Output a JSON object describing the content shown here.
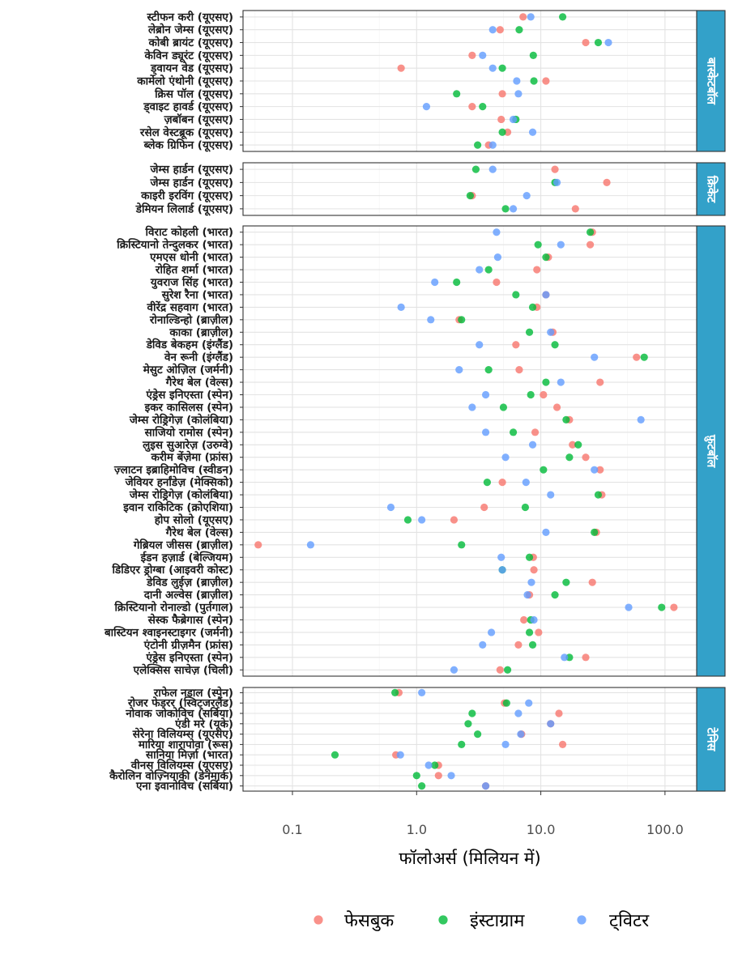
{
  "chart_data": {
    "type": "scatter",
    "title": "",
    "xlabel": "फॉलोअर्स (मिलियन में)",
    "ylabel": "",
    "x_scale": "log10",
    "xlim": [
      0.04,
      180
    ],
    "x_ticks": [
      0.1,
      1,
      10,
      100
    ],
    "x_tick_labels": [
      "0.1",
      "1.0",
      "10.0",
      "100.0"
    ],
    "grid": true,
    "legend_position": "bottom",
    "colors": {
      "फेसबुक": "#F8766D",
      "इंस्टाग्राम": "#00BA38",
      "ट्विटर": "#619CFF"
    },
    "legend": [
      {
        "label": "फेसबुक",
        "color": "#F8766D"
      },
      {
        "label": "इंस्टाग्राम",
        "color": "#00BA38"
      },
      {
        "label": "ट्विटर",
        "color": "#619CFF"
      }
    ],
    "series_order": [
      "फेसबुक",
      "इंस्टाग्राम",
      "ट्विटर"
    ],
    "panels": [
      {
        "sport": "बास्केटबॉल",
        "athletes": [
          {
            "name": "स्टीफन करी (यूएसए)",
            "values": [
              7.2,
              15,
              8.3
            ]
          },
          {
            "name": "लेब्रोन जेम्स (यूएसए)",
            "values": [
              4.7,
              6.7,
              4.1
            ]
          },
          {
            "name": "कोबी ब्रायंट (यूएसए)",
            "values": [
              23,
              29,
              35
            ]
          },
          {
            "name": "केविन ड्यूरंट (यूएसए)",
            "values": [
              2.8,
              8.7,
              3.4
            ]
          },
          {
            "name": "ड्वायन वेड (यूएसए)",
            "values": [
              0.75,
              4.9,
              4.1
            ]
          },
          {
            "name": "कार्मेलो एंथोनी (यूएसए)",
            "values": [
              11,
              8.8,
              6.4
            ]
          },
          {
            "name": "क्रिस पॉल (यूएसए)",
            "values": [
              4.9,
              2.1,
              6.6
            ]
          },
          {
            "name": "ड्वाइट हावर्ड (यूएसए)",
            "values": [
              2.8,
              3.4,
              1.2
            ]
          },
          {
            "name": "ज़बॉबन (यूएसए)",
            "values": [
              4.8,
              6.3,
              6.0
            ]
          },
          {
            "name": "रसेल वेस्टब्रूक (यूएसए)",
            "values": [
              5.4,
              4.9,
              8.6
            ]
          },
          {
            "name": "ब्लेक ग्रिफिन (यूएसए)",
            "values": [
              3.8,
              3.1,
              4.1
            ]
          }
        ]
      },
      {
        "sport": "क्रिकेट",
        "athletes": [
          {
            "name": "जेम्स हार्डन (यूएसए)",
            "values": [
              13,
              3.0,
              4.1
            ]
          },
          {
            "name": "जेम्स हार्डन (यूएसए)",
            "values": [
              34,
              13,
              13.5
            ]
          },
          {
            "name": "काइरी इरविंग (यूएसए)",
            "values": [
              2.8,
              2.7,
              7.7
            ]
          },
          {
            "name": "डेमियन लिलार्ड (यूएसए)",
            "values": [
              19,
              5.2,
              6.0
            ]
          }
        ]
      },
      {
        "sport": "फ़ुटबॉल",
        "athletes": [
          {
            "name": "विराट कोहली (भारत)",
            "values": [
              26,
              25,
              4.4
            ]
          },
          {
            "name": "क्रिस्टियानो तेन्दुलकर (भारत)",
            "values": [
              25,
              9.5,
              14.5
            ]
          },
          {
            "name": "एमएस धोनी (भारत)",
            "values": [
              11.5,
              11,
              4.5
            ]
          },
          {
            "name": "रोहित शर्मा (भारत)",
            "values": [
              9.3,
              3.8,
              3.2
            ]
          },
          {
            "name": "युवराज सिंह (भारत)",
            "values": [
              4.4,
              2.1,
              1.4
            ]
          },
          {
            "name": "सुरेश रैना (भारत)",
            "values": [
              11,
              6.3,
              11
            ]
          },
          {
            "name": "वीरेंद्र सहवाग (भारत)",
            "values": [
              9.3,
              8.6,
              0.75
            ]
          },
          {
            "name": "रोनाल्डिन्हो (ब्राज़ील)",
            "values": [
              2.2,
              2.3,
              1.3
            ]
          },
          {
            "name": "काका (ब्राज़ील)",
            "values": [
              12.5,
              8.1,
              12
            ]
          },
          {
            "name": "डेविड बेकहम (इंग्लैंड)",
            "values": [
              6.3,
              13,
              3.2
            ]
          },
          {
            "name": "वेन रूनी (इंग्लैंड)",
            "values": [
              59,
              68,
              27
            ]
          },
          {
            "name": "मेसुट ओज़िल (जर्मनी)",
            "values": [
              6.7,
              3.8,
              2.2
            ]
          },
          {
            "name": "गैरेथ बेल (वेल्स)",
            "values": [
              30,
              11,
              14.5
            ]
          },
          {
            "name": "एंड्रेस इनिएस्ता (स्पेन)",
            "values": [
              10.5,
              8.3,
              3.6
            ]
          },
          {
            "name": "इकर कासिलस (स्पेन)",
            "values": [
              13.5,
              5.0,
              2.8
            ]
          },
          {
            "name": "जेम्स रोड्रिगेज़ (कोलंबिया)",
            "values": [
              17,
              16,
              64
            ]
          },
          {
            "name": "साजियो रामोस (स्पेन)",
            "values": [
              9.0,
              6.0,
              3.6
            ]
          },
          {
            "name": "लुइस सुआरेज़ (उरुग्वे)",
            "values": [
              18,
              20,
              8.6
            ]
          },
          {
            "name": "करीम बेंज़ेमा (फ्रांस)",
            "values": [
              23,
              17,
              5.2
            ]
          },
          {
            "name": "ज़्लाटन इब्राहिमोविच (स्वीडन)",
            "values": [
              30,
              10.5,
              27
            ]
          },
          {
            "name": "जेवियर हर्नांडेज़ (मेक्सिको)",
            "values": [
              4.9,
              3.7,
              7.6
            ]
          },
          {
            "name": "जेम्स रोड्रिगेज़ (कोलंबिया)",
            "values": [
              31,
              29,
              12
            ]
          },
          {
            "name": "इवान राकिटिक (क्रोएशिया)",
            "values": [
              3.5,
              7.5,
              0.62
            ]
          },
          {
            "name": "होप सोलो (यूएसए)",
            "values": [
              2.0,
              0.85,
              1.1
            ]
          },
          {
            "name": "गैरेथ बेल (वेल्स)",
            "values": [
              28,
              27,
              11
            ]
          },
          {
            "name": "गेब्रियल जीसस (ब्राज़ील)",
            "values": [
              0.053,
              2.3,
              0.14
            ]
          },
          {
            "name": "ईडन हज़ार्ड (बेल्जियम)",
            "values": [
              8.7,
              8.1,
              4.8
            ]
          },
          {
            "name": "डिडिएर ड्रोग्बा (आइवरी कोस्ट)",
            "values": [
              8.8,
              4.9,
              4.9
            ]
          },
          {
            "name": "डेविड लुईज़ (ब्राज़ील)",
            "values": [
              26,
              16,
              8.4
            ]
          },
          {
            "name": "दानी अल्वेस (ब्राज़ील)",
            "values": [
              8.1,
              13,
              7.8
            ]
          },
          {
            "name": "क्रिस्टियानो रोनाल्डो (पुर्तगाल)",
            "values": [
              118,
              94,
              51
            ]
          },
          {
            "name": "सेस्क फैब्रेगास (स्पेन)",
            "values": [
              7.3,
              8.3,
              8.8
            ]
          },
          {
            "name": "बास्टियन श्वाइनस्टाइगर (जर्मनी)",
            "values": [
              9.6,
              8.1,
              4.0
            ]
          },
          {
            "name": "एंटोनी ग्रीज़मैन (फ्रांस)",
            "values": [
              6.6,
              8.6,
              3.4
            ]
          },
          {
            "name": "एंड्रेस इनिएस्ता (स्पेन)",
            "values": [
              23,
              17,
              15.5
            ]
          },
          {
            "name": "एलेक्सिस साचेज़ (चिली)",
            "values": [
              4.7,
              5.4,
              2.0
            ]
          }
        ]
      },
      {
        "sport": "टेनिस",
        "athletes": [
          {
            "name": "राफेल नडाल (स्पेन)",
            "values": [
              0.72,
              0.67,
              1.1
            ]
          },
          {
            "name": "रोजर फेडरर (स्विट्जरलैंड)",
            "values": [
              5.1,
              5.3,
              8.0
            ]
          },
          {
            "name": "नोवाक जोकोविच (सर्बिया)",
            "values": [
              14,
              2.8,
              6.6
            ]
          },
          {
            "name": "एंडी मरे (यूके)",
            "values": [
              12,
              2.6,
              12
            ]
          },
          {
            "name": "सेरेना विलियम्स (यूएसए)",
            "values": [
              7.0,
              3.1,
              6.9
            ]
          },
          {
            "name": "मारिया शारापोवा (रूस)",
            "values": [
              15,
              2.3,
              5.2
            ]
          },
          {
            "name": "सानिया मिर्ज़ा (भारत)",
            "values": [
              0.68,
              0.22,
              0.74
            ]
          },
          {
            "name": "वीनस विलियम्स (यूएसए)",
            "values": [
              1.5,
              1.4,
              1.25
            ]
          },
          {
            "name": "कैरोलिन वोज़्नियाकी (डेनमार्क)",
            "values": [
              1.5,
              1.0,
              1.9
            ]
          },
          {
            "name": "एना इवानोविच (सर्बिया)",
            "values": [
              3.6,
              1.1,
              3.6
            ]
          }
        ]
      }
    ]
  }
}
